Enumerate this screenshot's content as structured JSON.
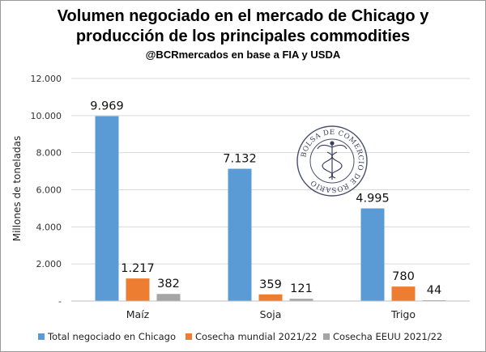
{
  "chart_data": {
    "type": "bar",
    "title": [
      "Volumen negociado en el mercado de Chicago y",
      "producción de los principales commodities"
    ],
    "subtitle": "@BCRmercados en base a FIA y USDA",
    "ylabel": "Millones de toneladas",
    "xlabel": "",
    "ylim": [
      0,
      12000
    ],
    "yticks": [
      0,
      2000,
      4000,
      6000,
      8000,
      10000,
      12000
    ],
    "ytick_labels": [
      "-",
      "2.000",
      "4.000",
      "6.000",
      "8.000",
      "10.000",
      "12.000"
    ],
    "categories": [
      "Maíz",
      "Soja",
      "Trigo"
    ],
    "series": [
      {
        "name": "Total negociado en Chicago",
        "color": "#5b9bd5",
        "values": [
          9969,
          7132,
          4995
        ],
        "labels": [
          "9.969",
          "7.132",
          "4.995"
        ]
      },
      {
        "name": "Cosecha mundial 2021/22",
        "color": "#ed7d31",
        "values": [
          1217,
          359,
          780
        ],
        "labels": [
          "1.217",
          "359",
          "780"
        ]
      },
      {
        "name": "Cosecha EEUU 2021/22",
        "color": "#a5a5a5",
        "values": [
          382,
          121,
          44
        ],
        "labels": [
          "382",
          "121",
          "44"
        ]
      }
    ],
    "grid": true,
    "legend_position": "bottom"
  },
  "seal": {
    "text": "BOLSA DE COMERCIO DE ROSARIO",
    "icon": "caduceus-icon"
  }
}
